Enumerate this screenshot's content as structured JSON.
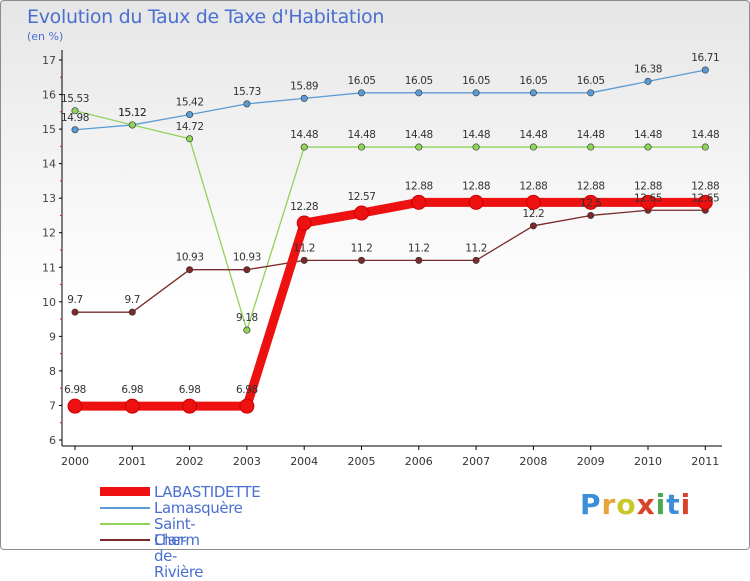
{
  "title": "Evolution du Taux de Taxe d'Habitation",
  "unit_label": "(en %)",
  "logo": {
    "text": "Proxiti",
    "letters": [
      "P",
      "r",
      "o",
      "x",
      "i",
      "t",
      "i"
    ],
    "colors": [
      "#3a8fd8",
      "#e8a33a",
      "#c8c82a",
      "#d8442a",
      "#4aaa4a",
      "#3a8fd8",
      "#d8442a"
    ]
  },
  "chart_data": {
    "type": "line",
    "categories": [
      "2000",
      "2001",
      "2002",
      "2003",
      "2004",
      "2005",
      "2006",
      "2007",
      "2008",
      "2009",
      "2010",
      "2011"
    ],
    "ylim": [
      6,
      17
    ],
    "yticks": [
      6,
      7,
      8,
      9,
      10,
      11,
      12,
      13,
      14,
      15,
      16,
      17
    ],
    "grid": false,
    "legend_position": "bottom-left",
    "series": [
      {
        "name": "Lamasquère",
        "color": "#5b9bd5",
        "values": [
          14.98,
          15.12,
          15.42,
          15.73,
          15.89,
          16.05,
          16.05,
          16.05,
          16.05,
          16.05,
          16.38,
          16.71
        ],
        "labels": [
          "14.98",
          "15.12",
          "15.42",
          "15.73",
          "15.89",
          "16.05",
          "16.05",
          "16.05",
          "16.05",
          "16.05",
          "16.38",
          "16.71"
        ]
      },
      {
        "name": "Saint-Clar-de-Rivière",
        "color": "#8fd35a",
        "values": [
          15.53,
          15.12,
          14.72,
          9.18,
          14.48,
          14.48,
          14.48,
          14.48,
          14.48,
          14.48,
          14.48,
          14.48
        ],
        "labels": [
          "15.53",
          "15.12",
          "14.72",
          "9.18",
          "14.48",
          "14.48",
          "14.48",
          "14.48",
          "14.48",
          "14.48",
          "14.48",
          "14.48"
        ]
      },
      {
        "name": "Lherm",
        "color": "#7a2a2a",
        "values": [
          9.7,
          9.7,
          10.93,
          10.93,
          11.2,
          11.2,
          11.2,
          11.2,
          12.2,
          12.5,
          12.65,
          12.65
        ],
        "labels": [
          "9.7",
          "9.7",
          "10.93",
          "10.93",
          "11.2",
          "11.2",
          "11.2",
          "11.2",
          "12.2",
          "12.5",
          "12.65",
          "12.65"
        ]
      },
      {
        "name": "LABASTIDETTE",
        "color": "#ee1111",
        "values": [
          6.98,
          6.98,
          6.98,
          6.98,
          12.28,
          12.57,
          12.88,
          12.88,
          12.88,
          12.88,
          12.88,
          12.88
        ],
        "labels": [
          "6.98",
          "6.98",
          "6.98",
          "6.98",
          "12.28",
          "12.57",
          "12.88",
          "12.88",
          "12.88",
          "12.88",
          "12.88",
          "12.88"
        ]
      }
    ]
  },
  "legend": [
    {
      "label": "LABASTIDETTE",
      "color": "#ee1111",
      "thick": true
    },
    {
      "label": "Lamasquère",
      "color": "#5b9bd5",
      "thick": false
    },
    {
      "label": "Saint-Clar-de-Rivière",
      "color": "#8fd35a",
      "thick": false
    },
    {
      "label": "Lherm",
      "color": "#7a2a2a",
      "thick": false
    }
  ]
}
